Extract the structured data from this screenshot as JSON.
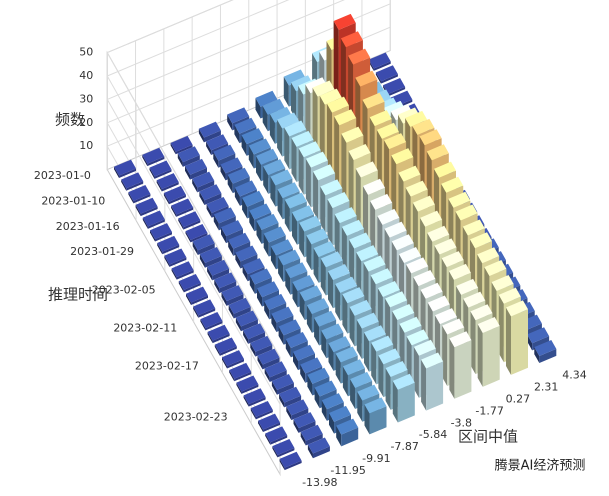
{
  "chart_data": {
    "type": "bar3d",
    "xlabel": "区间中值",
    "ylabel": "推理时间",
    "zlabel": "频数",
    "categories": [
      -13.98,
      -11.95,
      -9.91,
      -7.87,
      -5.84,
      -3.8,
      -1.77,
      0.27,
      2.31,
      4.34
    ],
    "rows": [
      "2023-01-0",
      null,
      "2023-01-10",
      null,
      "2023-01-16",
      null,
      "2023-01-29",
      null,
      null,
      "2023-02-05",
      null,
      null,
      "2023-02-11",
      null,
      null,
      "2023-02-17",
      null,
      null,
      null,
      "2023-02-23",
      null,
      null,
      null,
      null
    ],
    "values": [
      [
        1,
        1,
        1,
        2,
        3,
        5,
        9,
        14,
        3,
        1
      ],
      [
        1,
        1,
        2,
        2,
        4,
        7,
        12,
        20,
        5,
        1
      ],
      [
        1,
        1,
        2,
        3,
        5,
        9,
        16,
        30,
        8,
        1
      ],
      [
        1,
        1,
        2,
        3,
        6,
        12,
        22,
        44,
        10,
        1
      ],
      [
        1,
        1,
        2,
        4,
        7,
        14,
        26,
        42,
        12,
        1
      ],
      [
        1,
        1,
        2,
        4,
        8,
        15,
        28,
        40,
        14,
        1
      ],
      [
        1,
        1,
        3,
        5,
        9,
        16,
        30,
        36,
        18,
        2
      ],
      [
        1,
        2,
        3,
        5,
        9,
        17,
        30,
        32,
        22,
        2
      ],
      [
        1,
        2,
        3,
        6,
        10,
        17,
        28,
        30,
        26,
        2
      ],
      [
        1,
        2,
        3,
        6,
        10,
        16,
        26,
        30,
        30,
        2
      ],
      [
        1,
        2,
        3,
        6,
        11,
        16,
        24,
        31,
        32,
        2
      ],
      [
        1,
        2,
        4,
        7,
        11,
        15,
        22,
        30,
        33,
        2
      ],
      [
        1,
        2,
        4,
        7,
        11,
        15,
        21,
        28,
        32,
        2
      ],
      [
        1,
        2,
        4,
        7,
        12,
        15,
        20,
        27,
        30,
        2
      ],
      [
        1,
        2,
        4,
        8,
        12,
        15,
        20,
        26,
        29,
        2
      ],
      [
        1,
        2,
        4,
        8,
        12,
        16,
        20,
        25,
        28,
        3
      ],
      [
        1,
        2,
        4,
        8,
        13,
        16,
        20,
        24,
        28,
        3
      ],
      [
        1,
        2,
        4,
        8,
        13,
        16,
        21,
        24,
        27,
        3
      ],
      [
        1,
        2,
        4,
        8,
        13,
        17,
        21,
        24,
        27,
        3
      ],
      [
        1,
        2,
        5,
        9,
        13,
        17,
        21,
        24,
        26,
        3
      ],
      [
        1,
        2,
        5,
        9,
        14,
        17,
        21,
        23,
        26,
        3
      ],
      [
        1,
        2,
        5,
        9,
        14,
        17,
        21,
        23,
        25,
        3
      ],
      [
        1,
        2,
        5,
        9,
        14,
        18,
        22,
        23,
        25,
        3
      ],
      [
        1,
        2,
        5,
        9,
        14,
        18,
        22,
        23,
        25,
        3
      ]
    ],
    "zlim": [
      0,
      50
    ],
    "zticks": [
      10,
      20,
      30,
      40,
      50
    ],
    "grid": true,
    "colormap": [
      "#313695",
      "#4575b4",
      "#74add1",
      "#abd9e9",
      "#e0f3f8",
      "#ffffbf",
      "#fee090",
      "#fdae61",
      "#f46d43",
      "#d73027",
      "#a50026"
    ],
    "watermark": "腾景AI经济预测"
  }
}
